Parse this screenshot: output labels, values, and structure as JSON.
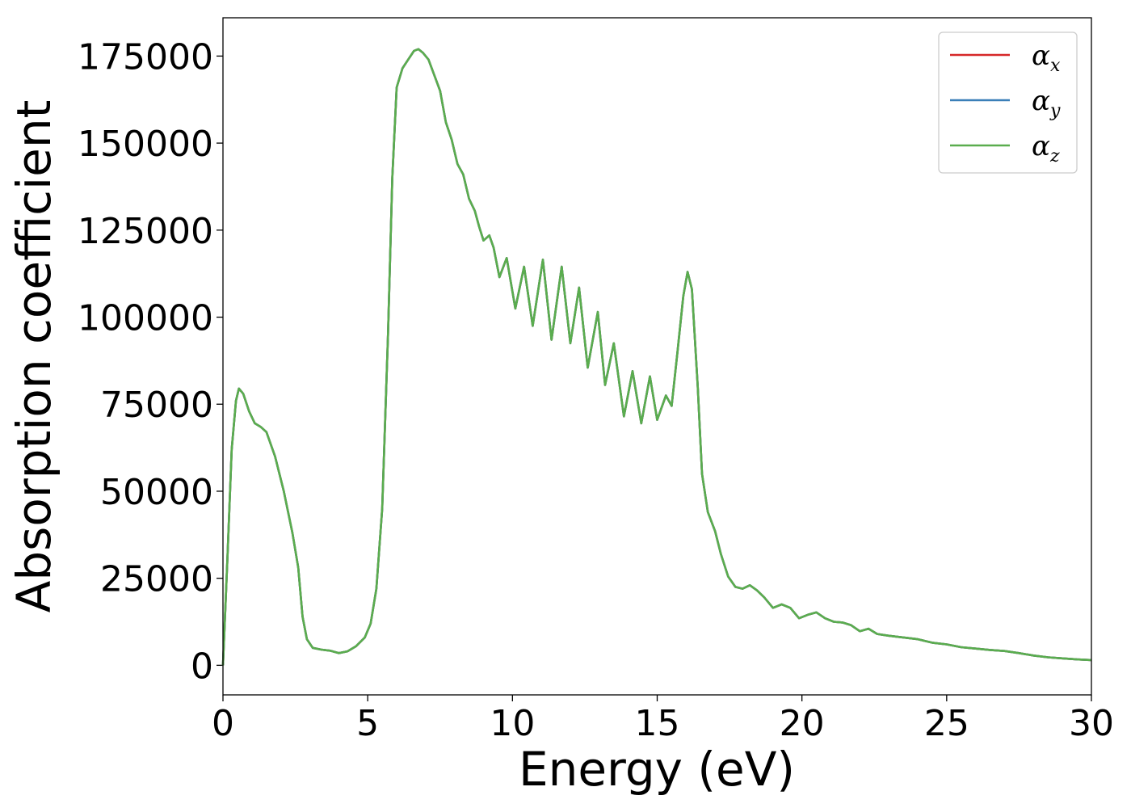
{
  "chart_data": {
    "type": "line",
    "xlabel": "Energy (eV)",
    "ylabel": "Absorption coefficient",
    "xlim": [
      0,
      30
    ],
    "ylim": [
      -8500,
      186000
    ],
    "xticks": [
      0,
      5,
      10,
      15,
      20,
      25,
      30
    ],
    "xtick_labels": [
      "0",
      "5",
      "10",
      "15",
      "20",
      "25",
      "30"
    ],
    "yticks": [
      0,
      25000,
      50000,
      75000,
      100000,
      125000,
      150000,
      175000
    ],
    "ytick_labels": [
      "0",
      "25000",
      "50000",
      "75000",
      "100000",
      "125000",
      "150000",
      "175000"
    ],
    "grid": false,
    "legend_position": "top-right",
    "series": [
      {
        "name": "α",
        "subscript": "x",
        "color": "#d62728",
        "points": "main"
      },
      {
        "name": "α",
        "subscript": "y",
        "color": "#3a7fb8",
        "points": "main"
      },
      {
        "name": "α",
        "subscript": "z",
        "color": "#5aad4e",
        "points": "main"
      }
    ],
    "points": [
      [
        0.0,
        0
      ],
      [
        0.15,
        30000
      ],
      [
        0.3,
        62000
      ],
      [
        0.45,
        76000
      ],
      [
        0.55,
        79500
      ],
      [
        0.7,
        78000
      ],
      [
        0.9,
        73000
      ],
      [
        1.1,
        69500
      ],
      [
        1.3,
        68500
      ],
      [
        1.5,
        67000
      ],
      [
        1.8,
        60000
      ],
      [
        2.1,
        50000
      ],
      [
        2.4,
        38000
      ],
      [
        2.6,
        28000
      ],
      [
        2.75,
        14000
      ],
      [
        2.9,
        7500
      ],
      [
        3.1,
        5000
      ],
      [
        3.4,
        4500
      ],
      [
        3.7,
        4200
      ],
      [
        4.0,
        3500
      ],
      [
        4.3,
        4000
      ],
      [
        4.6,
        5500
      ],
      [
        4.9,
        8000
      ],
      [
        5.1,
        12000
      ],
      [
        5.3,
        22000
      ],
      [
        5.5,
        45000
      ],
      [
        5.7,
        95000
      ],
      [
        5.85,
        140000
      ],
      [
        6.0,
        166000
      ],
      [
        6.2,
        171500
      ],
      [
        6.4,
        174000
      ],
      [
        6.6,
        176500
      ],
      [
        6.75,
        177000
      ],
      [
        6.9,
        176000
      ],
      [
        7.1,
        174000
      ],
      [
        7.3,
        169500
      ],
      [
        7.5,
        165000
      ],
      [
        7.7,
        156000
      ],
      [
        7.9,
        151000
      ],
      [
        8.1,
        144000
      ],
      [
        8.3,
        141000
      ],
      [
        8.5,
        134000
      ],
      [
        8.7,
        130500
      ],
      [
        8.85,
        126000
      ],
      [
        9.0,
        122000
      ],
      [
        9.2,
        123500
      ],
      [
        9.35,
        120000
      ],
      [
        9.55,
        111500
      ],
      [
        9.8,
        117000
      ],
      [
        10.1,
        102500
      ],
      [
        10.4,
        114500
      ],
      [
        10.7,
        97500
      ],
      [
        11.05,
        116500
      ],
      [
        11.35,
        93500
      ],
      [
        11.7,
        114500
      ],
      [
        12.0,
        92500
      ],
      [
        12.3,
        108500
      ],
      [
        12.6,
        85500
      ],
      [
        12.95,
        101500
      ],
      [
        13.2,
        80500
      ],
      [
        13.5,
        92500
      ],
      [
        13.85,
        71500
      ],
      [
        14.15,
        84500
      ],
      [
        14.45,
        69500
      ],
      [
        14.75,
        83000
      ],
      [
        15.0,
        70500
      ],
      [
        15.3,
        77500
      ],
      [
        15.5,
        74500
      ],
      [
        15.7,
        90000
      ],
      [
        15.9,
        106000
      ],
      [
        16.05,
        113000
      ],
      [
        16.2,
        108000
      ],
      [
        16.4,
        80000
      ],
      [
        16.55,
        55000
      ],
      [
        16.75,
        44000
      ],
      [
        17.0,
        38500
      ],
      [
        17.2,
        32000
      ],
      [
        17.45,
        25500
      ],
      [
        17.7,
        22500
      ],
      [
        17.95,
        22000
      ],
      [
        18.2,
        23000
      ],
      [
        18.45,
        21500
      ],
      [
        18.7,
        19500
      ],
      [
        19.0,
        16500
      ],
      [
        19.3,
        17500
      ],
      [
        19.6,
        16500
      ],
      [
        19.9,
        13500
      ],
      [
        20.2,
        14500
      ],
      [
        20.5,
        15200
      ],
      [
        20.8,
        13500
      ],
      [
        21.1,
        12500
      ],
      [
        21.4,
        12300
      ],
      [
        21.7,
        11500
      ],
      [
        22.0,
        9800
      ],
      [
        22.3,
        10500
      ],
      [
        22.6,
        9000
      ],
      [
        23.0,
        8500
      ],
      [
        23.5,
        8000
      ],
      [
        24.0,
        7500
      ],
      [
        24.5,
        6500
      ],
      [
        25.0,
        6000
      ],
      [
        25.5,
        5200
      ],
      [
        26.0,
        4800
      ],
      [
        26.5,
        4400
      ],
      [
        27.0,
        4100
      ],
      [
        27.5,
        3500
      ],
      [
        28.0,
        2800
      ],
      [
        28.5,
        2300
      ],
      [
        29.0,
        2000
      ],
      [
        29.5,
        1700
      ],
      [
        30.0,
        1500
      ]
    ]
  }
}
